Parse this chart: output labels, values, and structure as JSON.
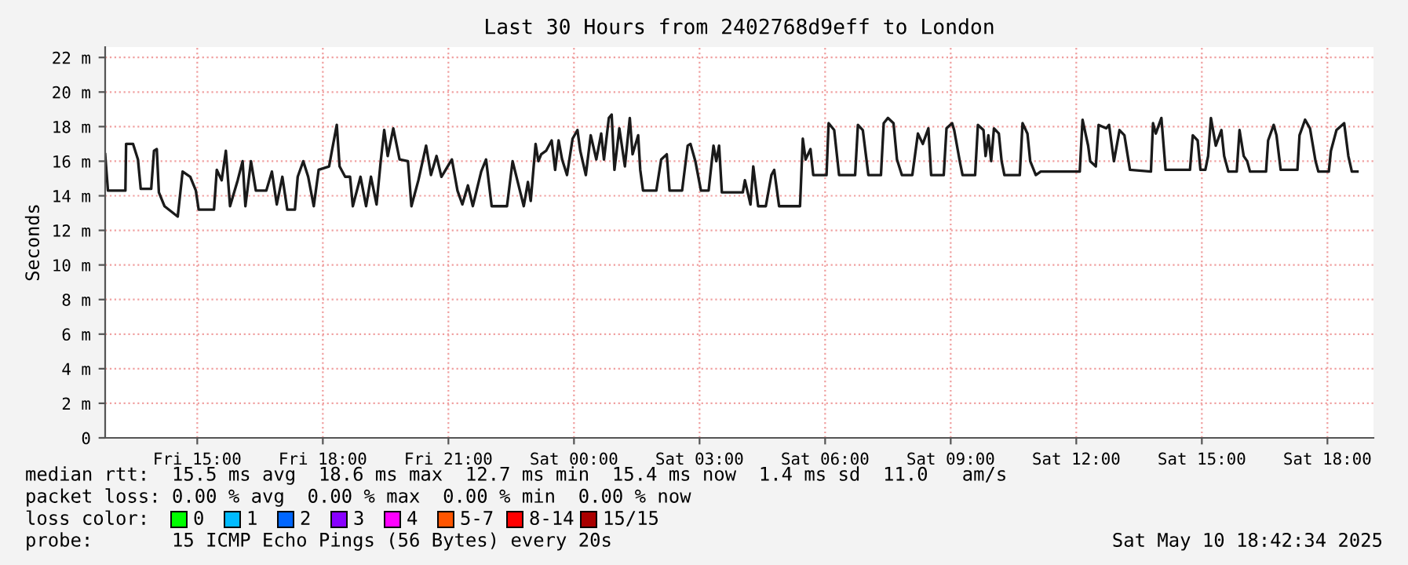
{
  "chart_data": {
    "type": "line",
    "title": "Last 30 Hours from 2402768d9eff to London",
    "ylabel": "Seconds",
    "xlim": [
      "2025-05-09T12:48",
      "2025-05-10T19:06"
    ],
    "ylim": [
      0,
      22.6
    ],
    "xticks": [
      {
        "value": "2025-05-09T15:00",
        "label": "Fri 15:00"
      },
      {
        "value": "2025-05-09T18:00",
        "label": "Fri 18:00"
      },
      {
        "value": "2025-05-09T21:00",
        "label": "Fri 21:00"
      },
      {
        "value": "2025-05-10T00:00",
        "label": "Sat 00:00"
      },
      {
        "value": "2025-05-10T03:00",
        "label": "Sat 03:00"
      },
      {
        "value": "2025-05-10T06:00",
        "label": "Sat 06:00"
      },
      {
        "value": "2025-05-10T09:00",
        "label": "Sat 09:00"
      },
      {
        "value": "2025-05-10T12:00",
        "label": "Sat 12:00"
      },
      {
        "value": "2025-05-10T15:00",
        "label": "Sat 15:00"
      },
      {
        "value": "2025-05-10T18:00",
        "label": "Sat 18:00"
      }
    ],
    "yticks": [
      0,
      {
        "value": 2,
        "label": "2 m"
      },
      {
        "value": 4,
        "label": "4 m"
      },
      {
        "value": 6,
        "label": "6 m"
      },
      {
        "value": 8,
        "label": "8 m"
      },
      {
        "value": 10,
        "label": "10 m"
      },
      {
        "value": 12,
        "label": "12 m"
      },
      {
        "value": 14,
        "label": "14 m"
      },
      {
        "value": 16,
        "label": "16 m"
      },
      {
        "value": 18,
        "label": "18 m"
      },
      {
        "value": 20,
        "label": "20 m"
      },
      {
        "value": 22,
        "label": "22 m"
      }
    ],
    "grid": true,
    "legend": false,
    "series": [
      {
        "color": "#1a1a1a",
        "x": [
          "2025-05-09T12:48",
          "2025-05-09T12:52",
          "2025-05-09T13:17",
          "2025-05-09T13:18",
          "2025-05-09T13:28",
          "2025-05-09T13:35",
          "2025-05-09T13:39",
          "2025-05-09T13:54",
          "2025-05-09T13:58",
          "2025-05-09T14:02",
          "2025-05-09T14:05",
          "2025-05-09T14:13",
          "2025-05-09T14:32",
          "2025-05-09T14:39",
          "2025-05-09T14:50",
          "2025-05-09T14:58",
          "2025-05-09T15:02",
          "2025-05-09T15:24",
          "2025-05-09T15:28",
          "2025-05-09T15:35",
          "2025-05-09T15:41",
          "2025-05-09T15:47",
          "2025-05-09T15:58",
          "2025-05-09T16:05",
          "2025-05-09T16:09",
          "2025-05-09T16:17",
          "2025-05-09T16:24",
          "2025-05-09T16:39",
          "2025-05-09T16:47",
          "2025-05-09T16:54",
          "2025-05-09T17:02",
          "2025-05-09T17:09",
          "2025-05-09T17:20",
          "2025-05-09T17:24",
          "2025-05-09T17:32",
          "2025-05-09T17:39",
          "2025-05-09T17:47",
          "2025-05-09T17:54",
          "2025-05-09T18:09",
          "2025-05-09T18:13",
          "2025-05-09T18:20",
          "2025-05-09T18:24",
          "2025-05-09T18:32",
          "2025-05-09T18:39",
          "2025-05-09T18:43",
          "2025-05-09T18:54",
          "2025-05-09T19:02",
          "2025-05-09T19:09",
          "2025-05-09T19:17",
          "2025-05-09T19:23",
          "2025-05-09T19:28",
          "2025-05-09T19:33",
          "2025-05-09T19:41",
          "2025-05-09T19:50",
          "2025-05-09T20:02",
          "2025-05-09T20:07",
          "2025-05-09T20:17",
          "2025-05-09T20:28",
          "2025-05-09T20:35",
          "2025-05-09T20:43",
          "2025-05-09T20:50",
          "2025-05-09T21:05",
          "2025-05-09T21:13",
          "2025-05-09T21:20",
          "2025-05-09T21:28",
          "2025-05-09T21:35",
          "2025-05-09T21:47",
          "2025-05-09T21:54",
          "2025-05-09T22:02",
          "2025-05-09T22:24",
          "2025-05-09T22:32",
          "2025-05-09T22:48",
          "2025-05-09T22:54",
          "2025-05-09T22:58",
          "2025-05-09T23:05",
          "2025-05-09T23:09",
          "2025-05-09T23:13",
          "2025-05-09T23:20",
          "2025-05-09T23:28",
          "2025-05-09T23:33",
          "2025-05-09T23:38",
          "2025-05-09T23:43",
          "2025-05-09T23:50",
          "2025-05-09T23:58",
          "2025-05-10T00:05",
          "2025-05-10T00:09",
          "2025-05-10T00:17",
          "2025-05-10T00:24",
          "2025-05-10T00:32",
          "2025-05-10T00:39",
          "2025-05-10T00:43",
          "2025-05-10T00:50",
          "2025-05-10T00:54",
          "2025-05-10T00:58",
          "2025-05-10T01:05",
          "2025-05-10T01:13",
          "2025-05-10T01:20",
          "2025-05-10T01:24",
          "2025-05-10T01:32",
          "2025-05-10T01:35",
          "2025-05-10T01:39",
          "2025-05-10T01:58",
          "2025-05-10T02:05",
          "2025-05-10T02:13",
          "2025-05-10T02:17",
          "2025-05-10T02:35",
          "2025-05-10T02:43",
          "2025-05-10T02:47",
          "2025-05-10T02:54",
          "2025-05-10T03:02",
          "2025-05-10T03:13",
          "2025-05-10T03:20",
          "2025-05-10T03:24",
          "2025-05-10T03:28",
          "2025-05-10T03:32",
          "2025-05-10T04:02",
          "2025-05-10T04:05",
          "2025-05-10T04:13",
          "2025-05-10T04:17",
          "2025-05-10T04:24",
          "2025-05-10T04:35",
          "2025-05-10T04:43",
          "2025-05-10T04:47",
          "2025-05-10T04:54",
          "2025-05-10T05:24",
          "2025-05-10T05:28",
          "2025-05-10T05:32",
          "2025-05-10T05:39",
          "2025-05-10T05:43",
          "2025-05-10T06:02",
          "2025-05-10T06:05",
          "2025-05-10T06:13",
          "2025-05-10T06:20",
          "2025-05-10T06:43",
          "2025-05-10T06:47",
          "2025-05-10T06:54",
          "2025-05-10T07:02",
          "2025-05-10T07:20",
          "2025-05-10T07:24",
          "2025-05-10T07:30",
          "2025-05-10T07:38",
          "2025-05-10T07:43",
          "2025-05-10T07:50",
          "2025-05-10T08:05",
          "2025-05-10T08:13",
          "2025-05-10T08:20",
          "2025-05-10T08:28",
          "2025-05-10T08:32",
          "2025-05-10T08:50",
          "2025-05-10T08:54",
          "2025-05-10T09:02",
          "2025-05-10T09:05",
          "2025-05-10T09:13",
          "2025-05-10T09:17",
          "2025-05-10T09:35",
          "2025-05-10T09:39",
          "2025-05-10T09:47",
          "2025-05-10T09:50",
          "2025-05-10T09:54",
          "2025-05-10T09:58",
          "2025-05-10T10:02",
          "2025-05-10T10:09",
          "2025-05-10T10:13",
          "2025-05-10T10:17",
          "2025-05-10T10:39",
          "2025-05-10T10:43",
          "2025-05-10T10:50",
          "2025-05-10T10:54",
          "2025-05-10T11:02",
          "2025-05-10T11:09",
          "2025-05-10T12:05",
          "2025-05-10T12:09",
          "2025-05-10T12:17",
          "2025-05-10T12:20",
          "2025-05-10T12:28",
          "2025-05-10T12:32",
          "2025-05-10T12:43",
          "2025-05-10T12:47",
          "2025-05-10T12:54",
          "2025-05-10T13:02",
          "2025-05-10T13:09",
          "2025-05-10T13:17",
          "2025-05-10T13:47",
          "2025-05-10T13:50",
          "2025-05-10T13:54",
          "2025-05-10T14:02",
          "2025-05-10T14:08",
          "2025-05-10T14:43",
          "2025-05-10T14:47",
          "2025-05-10T14:54",
          "2025-05-10T14:58",
          "2025-05-10T15:05",
          "2025-05-10T15:09",
          "2025-05-10T15:13",
          "2025-05-10T15:20",
          "2025-05-10T15:28",
          "2025-05-10T15:32",
          "2025-05-10T15:38",
          "2025-05-10T15:50",
          "2025-05-10T15:54",
          "2025-05-10T16:00",
          "2025-05-10T16:05",
          "2025-05-10T16:09",
          "2025-05-10T16:32",
          "2025-05-10T16:35",
          "2025-05-10T16:43",
          "2025-05-10T16:47",
          "2025-05-10T16:53",
          "2025-05-10T17:17",
          "2025-05-10T17:20",
          "2025-05-10T17:28",
          "2025-05-10T17:35",
          "2025-05-10T17:43",
          "2025-05-10T17:47",
          "2025-05-10T18:02",
          "2025-05-10T18:05",
          "2025-05-10T18:13",
          "2025-05-10T18:24",
          "2025-05-10T18:30",
          "2025-05-10T18:35",
          "2025-05-10T18:43"
        ],
        "values": [
          16.4,
          14.3,
          14.3,
          17.0,
          17.0,
          16.1,
          14.4,
          14.4,
          16.6,
          16.7,
          14.2,
          13.4,
          12.8,
          15.4,
          15.1,
          14.3,
          13.2,
          13.2,
          15.5,
          14.9,
          16.6,
          13.4,
          14.9,
          16.0,
          13.4,
          16.0,
          14.3,
          14.3,
          15.4,
          13.5,
          15.1,
          13.2,
          13.2,
          15.1,
          16.0,
          15.1,
          13.4,
          15.5,
          15.7,
          16.6,
          18.1,
          15.7,
          15.1,
          15.1,
          13.4,
          15.1,
          13.4,
          15.1,
          13.5,
          16.0,
          17.8,
          16.3,
          17.9,
          16.1,
          16.0,
          13.4,
          14.9,
          16.9,
          15.2,
          16.3,
          15.1,
          16.1,
          14.3,
          13.5,
          14.6,
          13.4,
          15.4,
          16.1,
          13.4,
          13.4,
          16.0,
          13.4,
          14.8,
          13.7,
          17.0,
          16.0,
          16.4,
          16.6,
          17.2,
          15.5,
          17.2,
          16.1,
          15.2,
          17.3,
          17.8,
          16.6,
          15.2,
          17.5,
          16.1,
          17.6,
          16.1,
          18.5,
          18.7,
          15.5,
          17.9,
          15.7,
          18.5,
          16.4,
          17.5,
          15.5,
          14.3,
          14.3,
          16.1,
          16.4,
          14.3,
          14.3,
          16.9,
          17.0,
          16.0,
          14.3,
          14.3,
          16.9,
          16.0,
          16.9,
          14.2,
          14.2,
          14.9,
          13.5,
          15.7,
          13.4,
          13.4,
          15.2,
          15.5,
          13.4,
          13.4,
          17.3,
          16.1,
          16.7,
          15.2,
          15.2,
          18.2,
          17.8,
          15.2,
          15.2,
          18.1,
          17.8,
          15.2,
          15.2,
          18.2,
          18.5,
          18.2,
          16.1,
          15.2,
          15.2,
          17.6,
          17.0,
          17.9,
          15.2,
          15.2,
          17.9,
          18.2,
          17.8,
          16.0,
          15.2,
          15.2,
          18.1,
          17.8,
          16.3,
          17.5,
          16.0,
          17.9,
          17.6,
          16.0,
          15.2,
          15.2,
          18.2,
          17.6,
          16.0,
          15.2,
          15.4,
          15.4,
          18.4,
          16.9,
          16.0,
          15.7,
          18.1,
          17.9,
          18.1,
          16.0,
          17.8,
          17.5,
          15.5,
          15.4,
          18.2,
          17.6,
          18.5,
          15.5,
          15.5,
          17.5,
          17.2,
          15.5,
          15.5,
          16.3,
          18.5,
          16.9,
          17.8,
          16.3,
          15.4,
          15.4,
          17.8,
          16.3,
          16.0,
          15.4,
          15.4,
          17.2,
          18.1,
          17.5,
          15.5,
          15.5,
          17.5,
          18.4,
          17.9,
          16.0,
          15.4,
          15.4,
          16.6,
          17.8,
          18.2,
          16.3,
          15.4,
          15.4
        ]
      }
    ],
    "annotations": [
      "median rtt:  15.5 ms avg  18.6 ms max  12.7 ms min  15.4 ms now  1.4 ms sd  11.0   am/s",
      "packet loss: 0.00 % avg  0.00 % max  0.00 % min  0.00 % now",
      "loss color:",
      "0",
      "1",
      "2",
      "3",
      "4",
      "5-7",
      "8-14",
      "15/15",
      "probe:       15 ICMP Echo Pings (56 Bytes) every 20s",
      "Sat May 10 18:42:34 2025"
    ]
  }
}
